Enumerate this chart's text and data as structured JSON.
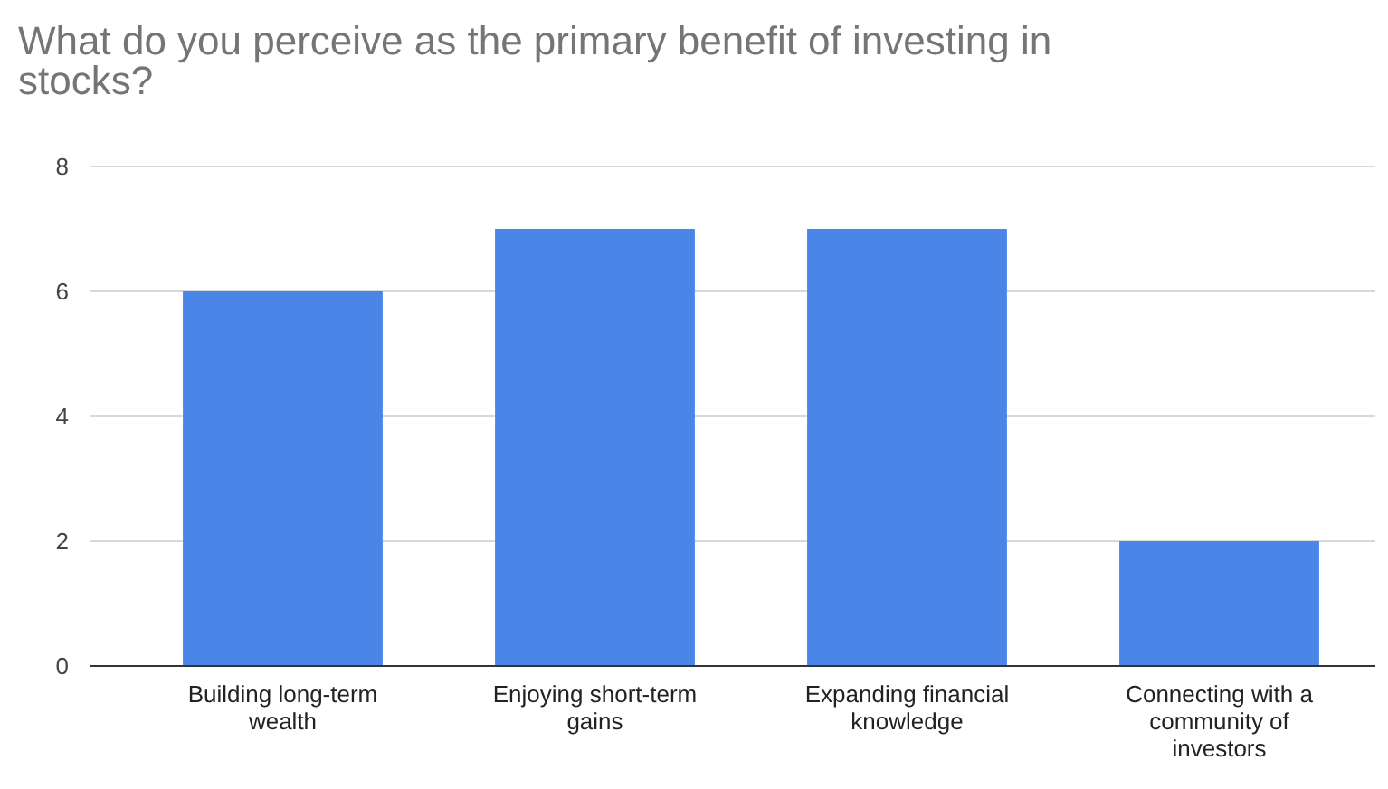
{
  "chart_data": {
    "type": "bar",
    "title": "What do you perceive as the primary benefit of investing in stocks?",
    "categories": [
      "Building long-term wealth",
      "Enjoying short-term gains",
      "Expanding financial knowledge",
      "Connecting with a community of investors"
    ],
    "values": [
      6,
      7,
      7,
      2
    ],
    "color": "#4a86e8",
    "ylim": [
      0,
      8
    ],
    "yticks": [
      0,
      2,
      4,
      6,
      8
    ],
    "grid": true
  }
}
